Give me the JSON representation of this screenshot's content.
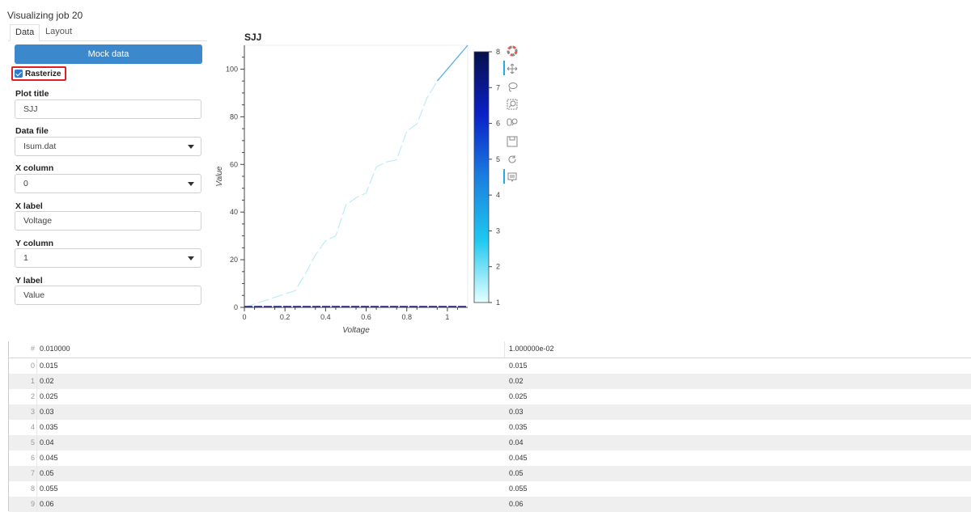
{
  "page": {
    "title": "Visualizing job 20"
  },
  "tabs": [
    {
      "label": "Data",
      "active": true
    },
    {
      "label": "Layout",
      "active": false
    }
  ],
  "form": {
    "mock_button": "Mock data",
    "rasterize": {
      "label": "Rasterize",
      "checked": true
    },
    "plot_title": {
      "label": "Plot title",
      "value": "SJJ"
    },
    "data_file": {
      "label": "Data file",
      "value": "Isum.dat"
    },
    "x_column": {
      "label": "X column",
      "value": "0"
    },
    "x_label": {
      "label": "X label",
      "value": "Voltage"
    },
    "y_column": {
      "label": "Y column",
      "value": "1"
    },
    "y_label": {
      "label": "Y label",
      "value": "Value"
    }
  },
  "toolbar": {
    "icons": [
      "bokeh-logo-icon",
      "pan-icon",
      "lasso-select-icon",
      "box-zoom-icon",
      "wheel-zoom-icon",
      "save-icon",
      "reset-icon",
      "hover-icon"
    ]
  },
  "chart_data": {
    "type": "line",
    "title": "SJJ",
    "xlabel": "Voltage",
    "ylabel": "Value",
    "xlim": [
      0,
      1.1
    ],
    "ylim": [
      0,
      110
    ],
    "xticks": [
      0,
      0.2,
      0.4,
      0.6,
      0.8,
      1
    ],
    "yticks": [
      0,
      20,
      40,
      60,
      80,
      100
    ],
    "xtick_labels": [
      "0",
      "0.2",
      "0.4",
      "0.6",
      "0.8",
      "1"
    ],
    "ytick_labels": [
      "0",
      "20",
      "40",
      "60",
      "80",
      "100"
    ],
    "series": [
      {
        "x": [
          0,
          0.25,
          0.3,
          0.35,
          0.4,
          0.45,
          0.5,
          0.55,
          0.6,
          0.65,
          0.7,
          0.75,
          0.8,
          0.85,
          0.9,
          0.95,
          1.0,
          1.05,
          1.1
        ],
        "y": [
          0,
          7,
          14,
          22,
          28,
          30,
          43,
          46,
          48,
          59,
          61,
          62,
          74,
          77,
          88,
          95,
          100,
          105,
          110
        ]
      },
      {
        "x": [
          0,
          1.1
        ],
        "y": [
          0,
          0
        ]
      }
    ],
    "colorbar": {
      "min": 1,
      "max": 8,
      "ticks": [
        1,
        2,
        3,
        4,
        5,
        6,
        7,
        8
      ],
      "tick_labels": [
        "1",
        "2",
        "3",
        "4",
        "5",
        "6",
        "7",
        "8"
      ],
      "colors": [
        "#e6ffff",
        "#1ec8f0",
        "#1a7fe0",
        "#0a20c8",
        "#06104a"
      ]
    }
  },
  "table": {
    "index_header": "#",
    "columns": [
      "0.010000",
      "1.000000e-02"
    ],
    "rows": [
      {
        "index": "0",
        "c0": "0.015",
        "c1": "0.015"
      },
      {
        "index": "1",
        "c0": "0.02",
        "c1": "0.02"
      },
      {
        "index": "2",
        "c0": "0.025",
        "c1": "0.025"
      },
      {
        "index": "3",
        "c0": "0.03",
        "c1": "0.03"
      },
      {
        "index": "4",
        "c0": "0.035",
        "c1": "0.035"
      },
      {
        "index": "5",
        "c0": "0.04",
        "c1": "0.04"
      },
      {
        "index": "6",
        "c0": "0.045",
        "c1": "0.045"
      },
      {
        "index": "7",
        "c0": "0.05",
        "c1": "0.05"
      },
      {
        "index": "8",
        "c0": "0.055",
        "c1": "0.055"
      },
      {
        "index": "9",
        "c0": "0.06",
        "c1": "0.06"
      }
    ]
  }
}
